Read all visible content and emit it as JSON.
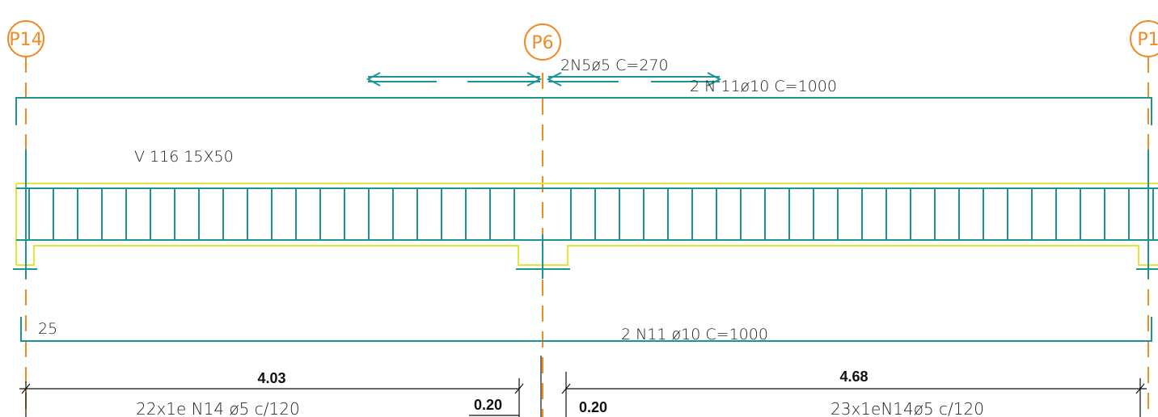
{
  "colors": {
    "pillar": "#f08a24",
    "rebar": "#1e9393",
    "outline": "#e5e535",
    "text": "#111111",
    "dimension": "#111111"
  },
  "pillars": [
    "P14",
    "P6",
    "P1"
  ],
  "beam": {
    "label": "V 116  15X50"
  },
  "rebars": {
    "negative": "2N5ø5   C=270",
    "top": "2  N  11ø10    C=1000",
    "bottom": "2  N11  ø10    C=1000",
    "anchor": "25"
  },
  "dimensions": {
    "span_left": "4.03",
    "span_right": "4.68",
    "support_left": "0.20",
    "support_right": "0.20"
  },
  "stirrups": {
    "left": "22x1e  N14  ø5  c/120",
    "right": "23x1eN14ø5  c/120"
  }
}
